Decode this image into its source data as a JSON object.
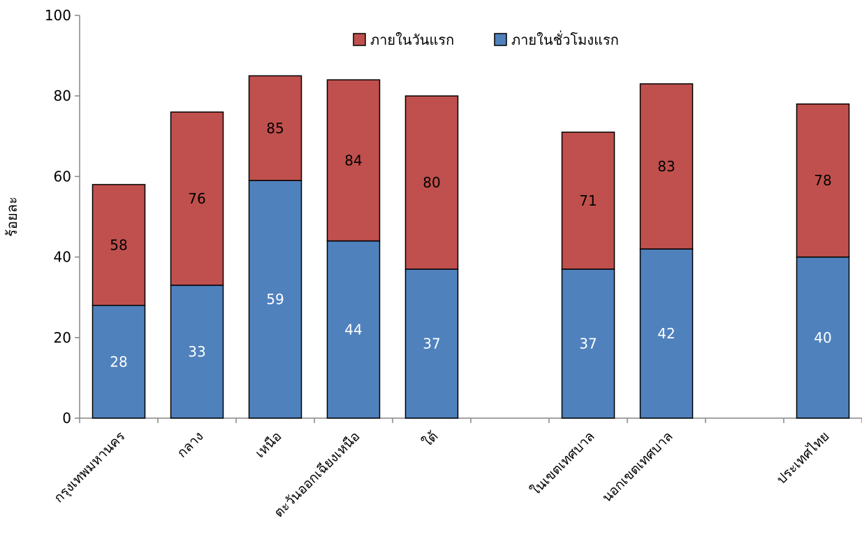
{
  "chart_data": {
    "type": "bar",
    "stacked": true,
    "title": "",
    "xlabel": "",
    "ylabel": "ร้อยละ",
    "ylim": [
      0,
      100
    ],
    "yticks": [
      0,
      20,
      40,
      60,
      80,
      100
    ],
    "grid": false,
    "legend_position": "top-center",
    "categories": [
      "กรุงเทพมหานคร",
      "กลาง",
      "เหนือ",
      "ตะวันออกเฉียงเหนือ",
      "ใต้",
      "",
      "ในเขตเทศบาล",
      "นอกเขตเทศบาล",
      "",
      "ประเทศไทย"
    ],
    "series": [
      {
        "name": "ภายในชั่วโมงแรก",
        "color": "#4F81BD",
        "label_color": "#ffffff",
        "values": [
          28,
          33,
          59,
          44,
          37,
          null,
          37,
          42,
          null,
          40
        ]
      },
      {
        "name": "ภายในวันแรก",
        "color": "#C0504D",
        "label_color": "#000000",
        "totals": [
          58,
          76,
          85,
          84,
          80,
          null,
          71,
          83,
          null,
          78
        ]
      }
    ],
    "legend_order": [
      "ภายในวันแรก",
      "ภายในชั่วโมงแรก"
    ]
  }
}
